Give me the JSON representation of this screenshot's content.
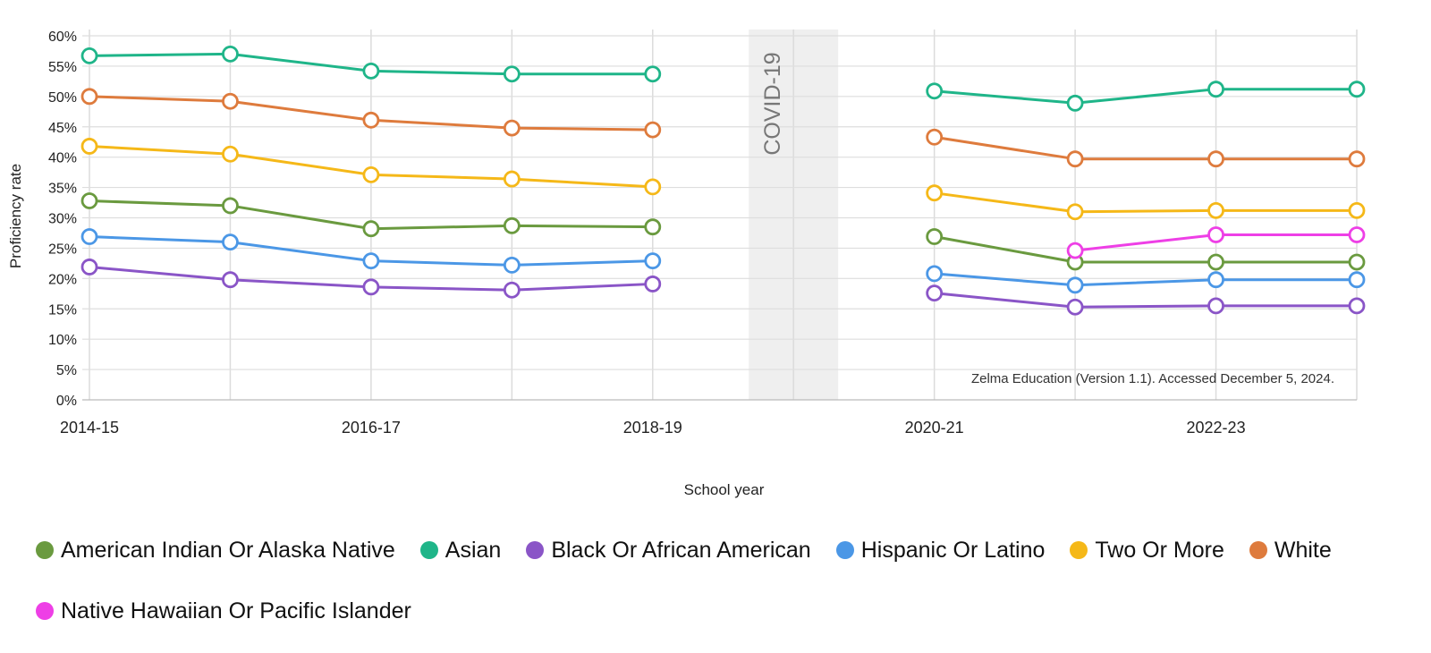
{
  "chart_data": {
    "type": "line",
    "xlabel": "School year",
    "ylabel": "Proficiency rate",
    "x": [
      "2014-15",
      "2015-16",
      "2016-17",
      "2017-18",
      "2018-19",
      "2019-20",
      "2020-21",
      "2021-22",
      "2022-23",
      "2023-24"
    ],
    "x_tick_labels": [
      "2014-15",
      "2016-17",
      "2018-19",
      "2020-21",
      "2022-23"
    ],
    "y_ticks": [
      "0%",
      "5%",
      "10%",
      "15%",
      "20%",
      "25%",
      "30%",
      "35%",
      "40%",
      "45%",
      "50%",
      "55%",
      "60%"
    ],
    "ylim": [
      0,
      60
    ],
    "grid": true,
    "legend_position": "bottom",
    "annotation": {
      "label": "COVID-19",
      "x": "2019-20"
    },
    "source_note": "Zelma Education (Version 1.1). Accessed December 5, 2024.",
    "series": [
      {
        "name": "American Indian Or Alaska Native",
        "color": "#6a9a3f",
        "values": [
          32.8,
          32.0,
          28.2,
          28.7,
          28.5,
          null,
          26.9,
          22.7,
          22.7,
          22.7
        ]
      },
      {
        "name": "Asian",
        "color": "#1fb589",
        "values": [
          56.7,
          57.0,
          54.2,
          53.7,
          53.7,
          null,
          50.9,
          48.9,
          51.2,
          51.2
        ]
      },
      {
        "name": "Black Or African American",
        "color": "#8a55c7",
        "values": [
          21.9,
          19.8,
          18.6,
          18.1,
          19.1,
          null,
          17.6,
          15.3,
          15.5,
          15.5
        ]
      },
      {
        "name": "Hispanic Or Latino",
        "color": "#4b97e6",
        "values": [
          26.9,
          26.0,
          22.9,
          22.2,
          22.9,
          null,
          20.8,
          18.9,
          19.8,
          19.8
        ]
      },
      {
        "name": "Two Or More",
        "color": "#f5b818",
        "values": [
          41.8,
          40.5,
          37.1,
          36.4,
          35.1,
          null,
          34.1,
          31.0,
          31.2,
          31.2
        ]
      },
      {
        "name": "White",
        "color": "#de7b3d",
        "values": [
          50.0,
          49.2,
          46.1,
          44.8,
          44.5,
          null,
          43.3,
          39.7,
          39.7,
          39.7
        ]
      },
      {
        "name": "Native Hawaiian Or Pacific Islander",
        "color": "#ee3fe6",
        "values": [
          null,
          null,
          null,
          null,
          null,
          null,
          null,
          24.6,
          27.2,
          27.2
        ]
      }
    ]
  }
}
